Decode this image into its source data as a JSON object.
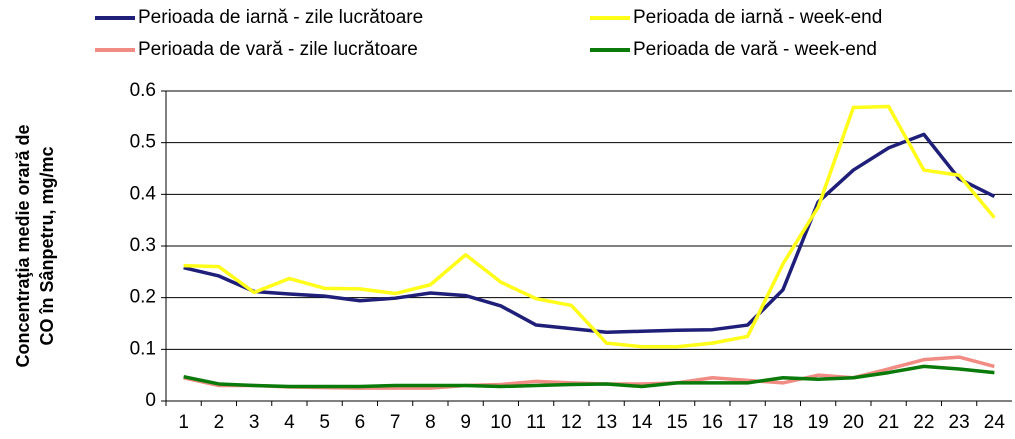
{
  "chart_data": {
    "type": "line",
    "y_label": [
      "Concentraţia medie orară de",
      "CO în Sânpetru, mg/mc"
    ],
    "categories": [
      "1",
      "2",
      "3",
      "4",
      "5",
      "6",
      "7",
      "8",
      "9",
      "10",
      "11",
      "12",
      "13",
      "14",
      "15",
      "16",
      "17",
      "18",
      "19",
      "20",
      "21",
      "22",
      "23",
      "24"
    ],
    "series": [
      {
        "name": "Perioada de iarnă - zile lucrătoare",
        "color": "#1f1f7a",
        "values": [
          0.258,
          0.242,
          0.212,
          0.207,
          0.203,
          0.194,
          0.199,
          0.209,
          0.204,
          0.184,
          0.147,
          0.14,
          0.133,
          0.135,
          0.137,
          0.138,
          0.147,
          0.215,
          0.385,
          0.447,
          0.49,
          0.516,
          0.43,
          0.396
        ]
      },
      {
        "name": "Perioada de iarnă - week-end",
        "color": "#ffff1a",
        "values": [
          0.262,
          0.26,
          0.21,
          0.237,
          0.218,
          0.217,
          0.208,
          0.225,
          0.283,
          0.23,
          0.198,
          0.185,
          0.112,
          0.105,
          0.105,
          0.112,
          0.125,
          0.265,
          0.375,
          0.568,
          0.57,
          0.447,
          0.437,
          0.355
        ]
      },
      {
        "name": "Perioada de vară - zile lucrătoare",
        "color": "#f08c84",
        "values": [
          0.045,
          0.03,
          0.03,
          0.027,
          0.026,
          0.025,
          0.025,
          0.025,
          0.03,
          0.032,
          0.038,
          0.035,
          0.033,
          0.033,
          0.035,
          0.045,
          0.04,
          0.035,
          0.05,
          0.045,
          0.062,
          0.08,
          0.085,
          0.067
        ]
      },
      {
        "name": "Perioada de vară - week-end",
        "color": "#0a7a0a",
        "values": [
          0.047,
          0.033,
          0.03,
          0.028,
          0.028,
          0.028,
          0.03,
          0.03,
          0.03,
          0.028,
          0.03,
          0.032,
          0.033,
          0.028,
          0.035,
          0.035,
          0.035,
          0.045,
          0.042,
          0.045,
          0.055,
          0.067,
          0.062,
          0.055
        ]
      }
    ],
    "ylim": [
      0,
      0.6
    ],
    "yticks": [
      0,
      0.1,
      0.2,
      0.3,
      0.4,
      0.5,
      0.6
    ],
    "grid": true
  }
}
